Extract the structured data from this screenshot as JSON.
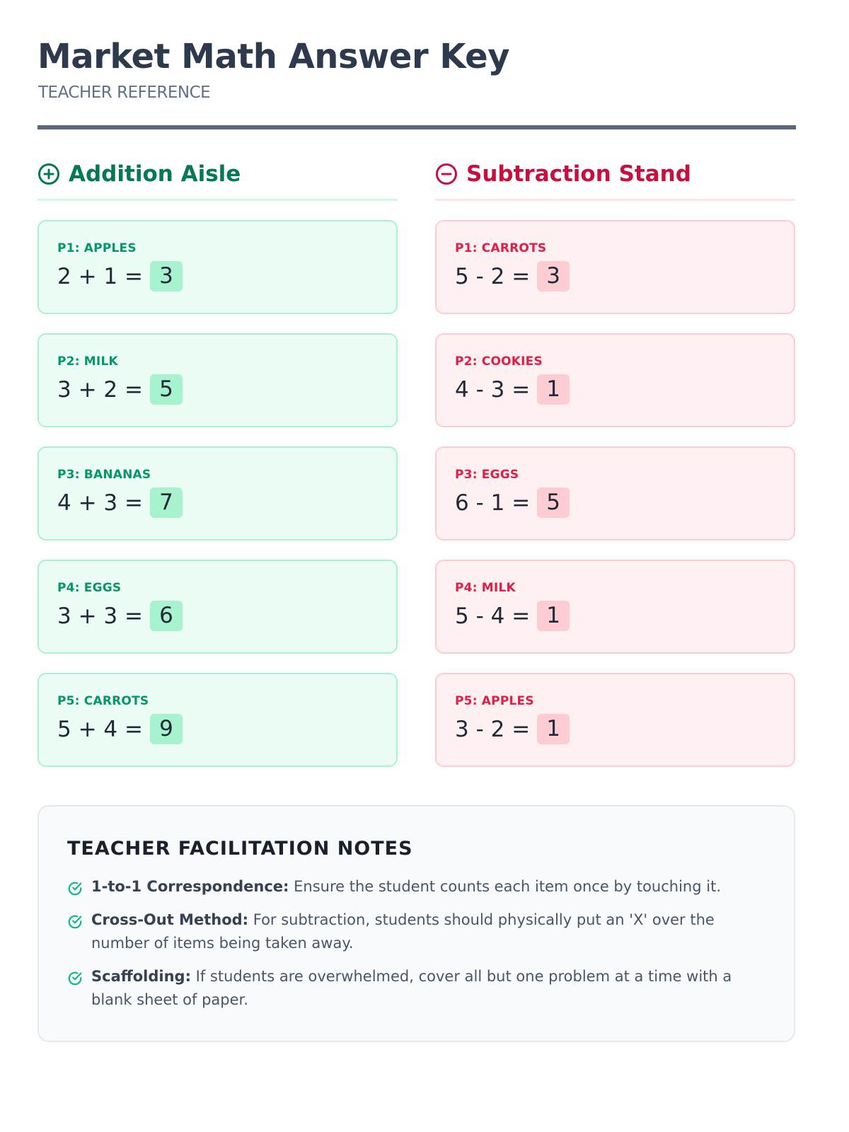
{
  "header": {
    "title": "Market Math Answer Key",
    "subtitle": "TEACHER REFERENCE"
  },
  "colors": {
    "addition": "#047857",
    "subtraction": "#c8103e",
    "check": "#10b981"
  },
  "addition": {
    "heading": "Addition Aisle",
    "icon": "plus-circle-icon",
    "problems": [
      {
        "label": "P1: APPLES",
        "equation": "2 + 1 =",
        "answer": "3"
      },
      {
        "label": "P2: MILK",
        "equation": "3 + 2 =",
        "answer": "5"
      },
      {
        "label": "P3: BANANAS",
        "equation": "4 + 3 =",
        "answer": "7"
      },
      {
        "label": "P4: EGGS",
        "equation": "3 + 3 =",
        "answer": "6"
      },
      {
        "label": "P5: CARROTS",
        "equation": "5 + 4 =",
        "answer": "9"
      }
    ]
  },
  "subtraction": {
    "heading": "Subtraction Stand",
    "icon": "minus-circle-icon",
    "problems": [
      {
        "label": "P1: CARROTS",
        "equation": "5 - 2 =",
        "answer": "3"
      },
      {
        "label": "P2: COOKIES",
        "equation": "4 - 3 =",
        "answer": "1"
      },
      {
        "label": "P3: EGGS",
        "equation": "6 - 1 =",
        "answer": "5"
      },
      {
        "label": "P4: MILK",
        "equation": "5 - 4 =",
        "answer": "1"
      },
      {
        "label": "P5: APPLES",
        "equation": "3 - 2 =",
        "answer": "1"
      }
    ]
  },
  "notes": {
    "title": "TEACHER FACILITATION NOTES",
    "items": [
      {
        "term": "1-to-1 Correspondence:",
        "text": " Ensure the student counts each item once by touching it."
      },
      {
        "term": "Cross-Out Method:",
        "text": " For subtraction, students should physically put an 'X' over the number of items being taken away."
      },
      {
        "term": "Scaffolding:",
        "text": " If students are overwhelmed, cover all but one problem at a time with a blank sheet of paper."
      }
    ]
  }
}
